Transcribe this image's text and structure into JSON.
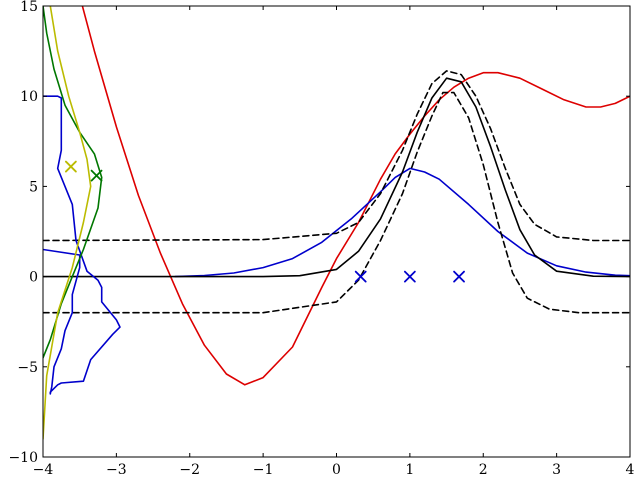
{
  "chart_data": {
    "type": "line",
    "xlim": [
      -4,
      4
    ],
    "ylim": [
      -10,
      15
    ],
    "x_ticks": [
      -4,
      -3,
      -2,
      -1,
      0,
      1,
      2,
      3,
      4
    ],
    "y_ticks": [
      -10,
      -5,
      0,
      5,
      10,
      15
    ],
    "x_tick_labels": [
      "−4",
      "−3",
      "−2",
      "−1",
      "0",
      "1",
      "2",
      "3",
      "4"
    ],
    "y_tick_labels": [
      "−10",
      "−5",
      "0",
      "5",
      "10",
      "15"
    ],
    "grid": false,
    "legend": "none",
    "series": [
      {
        "color": "#dd0000",
        "style": "solid",
        "x": [
          -3.6,
          -3.3,
          -3.0,
          -2.7,
          -2.4,
          -2.1,
          -1.8,
          -1.5,
          -1.25,
          -1.0,
          -0.6,
          -0.2,
          0.0,
          0.3,
          0.6,
          0.8,
          1.0,
          1.2,
          1.4,
          1.6,
          1.8,
          2.0,
          2.2,
          2.5,
          2.8,
          3.1,
          3.4,
          3.6,
          3.8,
          4.0
        ],
        "y": [
          17.1,
          12.5,
          8.3,
          4.5,
          1.3,
          -1.5,
          -3.8,
          -5.4,
          -6.0,
          -5.6,
          -3.9,
          -0.6,
          1.0,
          3.0,
          5.4,
          6.8,
          7.9,
          8.9,
          9.8,
          10.5,
          11.0,
          11.3,
          11.3,
          11.0,
          10.4,
          9.8,
          9.4,
          9.4,
          9.6,
          10.0
        ]
      },
      {
        "color": "#0000cc",
        "style": "solid",
        "x": [
          -2.2,
          -1.8,
          -1.4,
          -1.0,
          -0.6,
          -0.2,
          0.2,
          0.6,
          0.8,
          1.0,
          1.2,
          1.4,
          1.8,
          2.2,
          2.6,
          3.0,
          3.4,
          3.8,
          4.0
        ],
        "y": [
          0.0,
          0.06,
          0.2,
          0.5,
          1.0,
          1.9,
          3.2,
          4.7,
          5.5,
          6.0,
          5.8,
          5.4,
          4.0,
          2.5,
          1.3,
          0.6,
          0.25,
          0.08,
          0.05
        ]
      },
      {
        "color": "#000000",
        "style": "solid",
        "x": [
          -4.0,
          -1.0,
          -0.5,
          0.0,
          0.3,
          0.6,
          0.9,
          1.1,
          1.3,
          1.5,
          1.7,
          1.9,
          2.1,
          2.3,
          2.5,
          2.7,
          3.0,
          3.5,
          4.0
        ],
        "y": [
          0.0,
          0.0,
          0.05,
          0.4,
          1.4,
          3.2,
          5.8,
          8.0,
          9.9,
          11.0,
          10.8,
          9.4,
          7.2,
          4.8,
          2.6,
          1.2,
          0.3,
          0.02,
          0.0
        ]
      },
      {
        "color": "#000000",
        "style": "dashed",
        "x": [
          -4.0,
          -1.0,
          0.0,
          0.3,
          0.6,
          0.9,
          1.1,
          1.3,
          1.5,
          1.7,
          1.9,
          2.1,
          2.3,
          2.5,
          2.7,
          3.0,
          3.5,
          4.0
        ],
        "y": [
          2.0,
          2.05,
          2.4,
          3.0,
          4.6,
          7.0,
          9.0,
          10.7,
          11.4,
          11.2,
          10.0,
          8.2,
          6.0,
          4.0,
          2.9,
          2.2,
          2.0,
          2.0
        ]
      },
      {
        "color": "#000000",
        "style": "dashed",
        "x": [
          -4.0,
          -1.0,
          0.0,
          0.3,
          0.6,
          0.9,
          1.1,
          1.3,
          1.45,
          1.6,
          1.8,
          2.0,
          2.2,
          2.4,
          2.6,
          2.9,
          3.3,
          4.0
        ],
        "y": [
          -2.0,
          -2.0,
          -1.4,
          -0.2,
          2.0,
          4.6,
          6.9,
          8.9,
          10.2,
          10.2,
          8.8,
          6.2,
          3.0,
          0.2,
          -1.2,
          -1.8,
          -2.0,
          -2.0
        ]
      },
      {
        "color": "#0000cc",
        "style": "solid",
        "x": [
          -4.0,
          -3.8,
          -3.75,
          -3.75,
          -3.75,
          -3.75,
          -3.8,
          -3.6,
          -3.55,
          -3.4,
          -3.25,
          -3.2,
          -3.2,
          -3.0,
          -2.95,
          -3.05,
          -3.35,
          -3.45,
          -3.75,
          -3.8,
          -3.85,
          -3.9,
          -3.9,
          -3.88,
          -3.85,
          -3.75,
          -3.7,
          -3.6,
          -3.6,
          -3.5,
          -3.5,
          -4.0
        ],
        "y": [
          10.0,
          10.0,
          9.9,
          9.0,
          8.0,
          7.0,
          6.0,
          4.0,
          2.0,
          0.3,
          -0.2,
          -0.6,
          -1.4,
          -2.4,
          -2.8,
          -3.2,
          -4.6,
          -5.8,
          -5.9,
          -6.0,
          -6.2,
          -6.4,
          -6.5,
          -6.1,
          -5.0,
          -4.0,
          -3.0,
          -2.0,
          -1.0,
          0.5,
          1.2,
          1.5
        ]
      },
      {
        "color": "#007700",
        "style": "solid",
        "x": [
          -4.0,
          -3.95,
          -3.85,
          -3.7,
          -3.5,
          -3.3,
          -3.2,
          -3.25,
          -3.45,
          -3.6,
          -3.75,
          -3.9,
          -4.0
        ],
        "y": [
          15.0,
          13.5,
          11.5,
          9.5,
          8.0,
          6.8,
          5.5,
          3.8,
          1.5,
          0.0,
          -1.5,
          -3.5,
          -4.5
        ]
      },
      {
        "color": "#bbbb00",
        "style": "solid",
        "x": [
          -3.9,
          -3.8,
          -3.65,
          -3.5,
          -3.4,
          -3.35,
          -3.45,
          -3.6,
          -3.8,
          -3.95,
          -4.0
        ],
        "y": [
          15.0,
          12.5,
          10.0,
          8.0,
          6.5,
          5.0,
          3.0,
          0.5,
          -2.0,
          -5.5,
          -9.0
        ]
      }
    ],
    "markers": [
      {
        "x": -3.62,
        "y": 6.1,
        "color": "#bbbb00"
      },
      {
        "x": -3.27,
        "y": 5.6,
        "color": "#007700"
      },
      {
        "x": 0.33,
        "y": 0.0,
        "color": "#0000cc"
      },
      {
        "x": 1.0,
        "y": 0.0,
        "color": "#0000cc"
      },
      {
        "x": 1.67,
        "y": 0.0,
        "color": "#0000cc"
      }
    ]
  }
}
